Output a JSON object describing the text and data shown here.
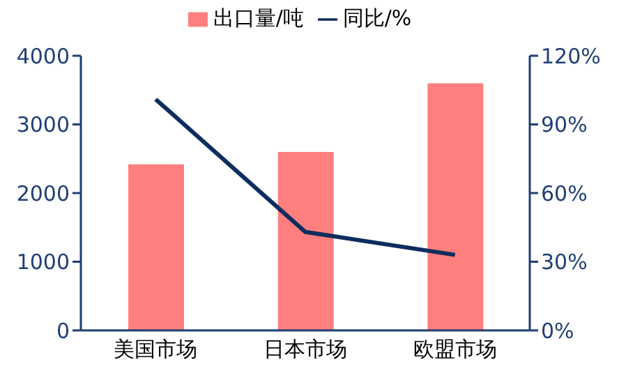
{
  "chart_data": {
    "type": "bar",
    "categories": [
      "美国市场",
      "日本市场",
      "欧盟市场"
    ],
    "series": [
      {
        "name": "出口量/吨",
        "color": "#ff7f7f",
        "values": [
          2420,
          2600,
          3600
        ]
      },
      {
        "name": "同比/%",
        "type": "line",
        "axis": "y2",
        "color": "#0d2d5e",
        "values": [
          101,
          43,
          33
        ]
      }
    ],
    "ylim": [
      0,
      4000
    ],
    "yticks": [
      0,
      1000,
      2000,
      3000,
      4000
    ],
    "y2lim": [
      0,
      120
    ],
    "y2ticks": [
      {
        "value": 0,
        "label": "0%"
      },
      {
        "value": 30,
        "label": "30%"
      },
      {
        "value": 60,
        "label": "60%"
      },
      {
        "value": 90,
        "label": "90%"
      },
      {
        "value": 120,
        "label": "120%"
      }
    ],
    "legend": "top",
    "grid": false,
    "marker": "none",
    "line_style": "solid"
  }
}
